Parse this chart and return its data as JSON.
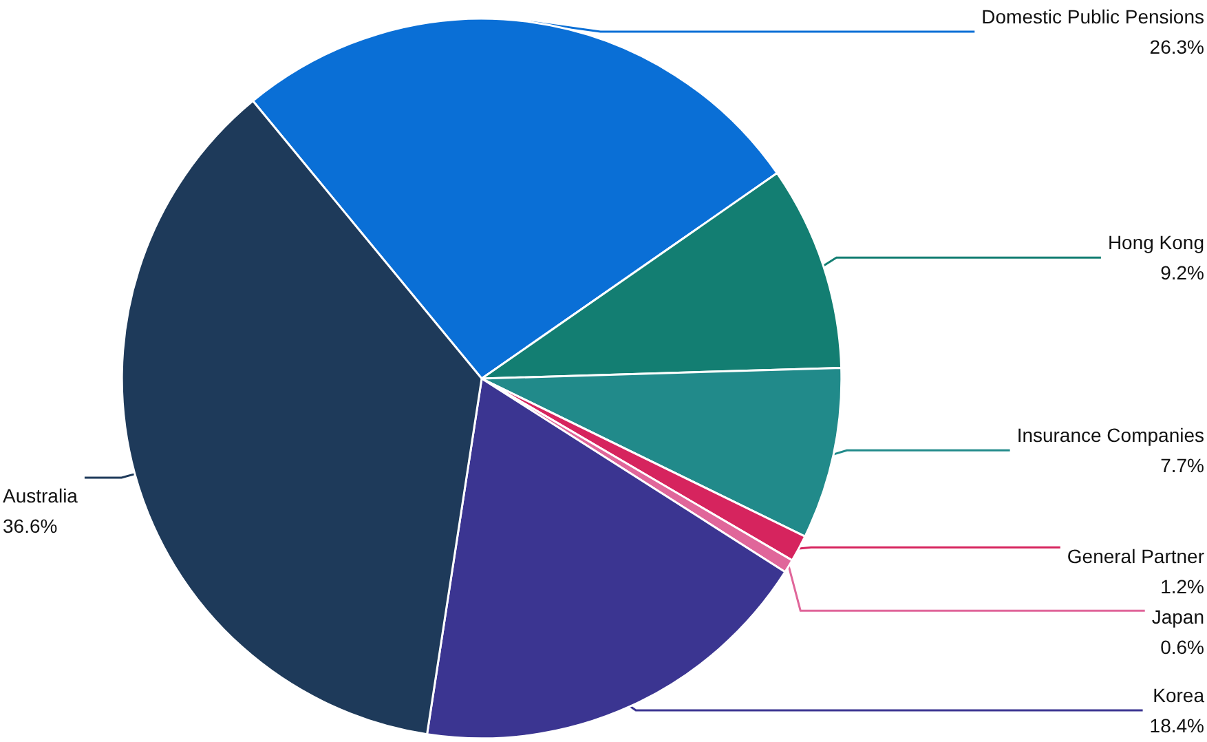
{
  "chart_data": {
    "type": "pie",
    "categories": [
      "Domestic Public Pensions",
      "Hong Kong",
      "Insurance Companies",
      "General Partner",
      "Japan",
      "Korea",
      "Australia"
    ],
    "values": [
      26.3,
      9.2,
      7.7,
      1.2,
      0.6,
      18.4,
      36.6
    ],
    "colors": [
      "#0a6fd6",
      "#137e72",
      "#218a8a",
      "#d6245e",
      "#e0669a",
      "#3b3591",
      "#1e3a5a"
    ],
    "value_labels": [
      "26.3%",
      "9.2%",
      "7.7%",
      "1.2%",
      "0.6%",
      "18.4%",
      "36.6%"
    ],
    "legend": false
  }
}
